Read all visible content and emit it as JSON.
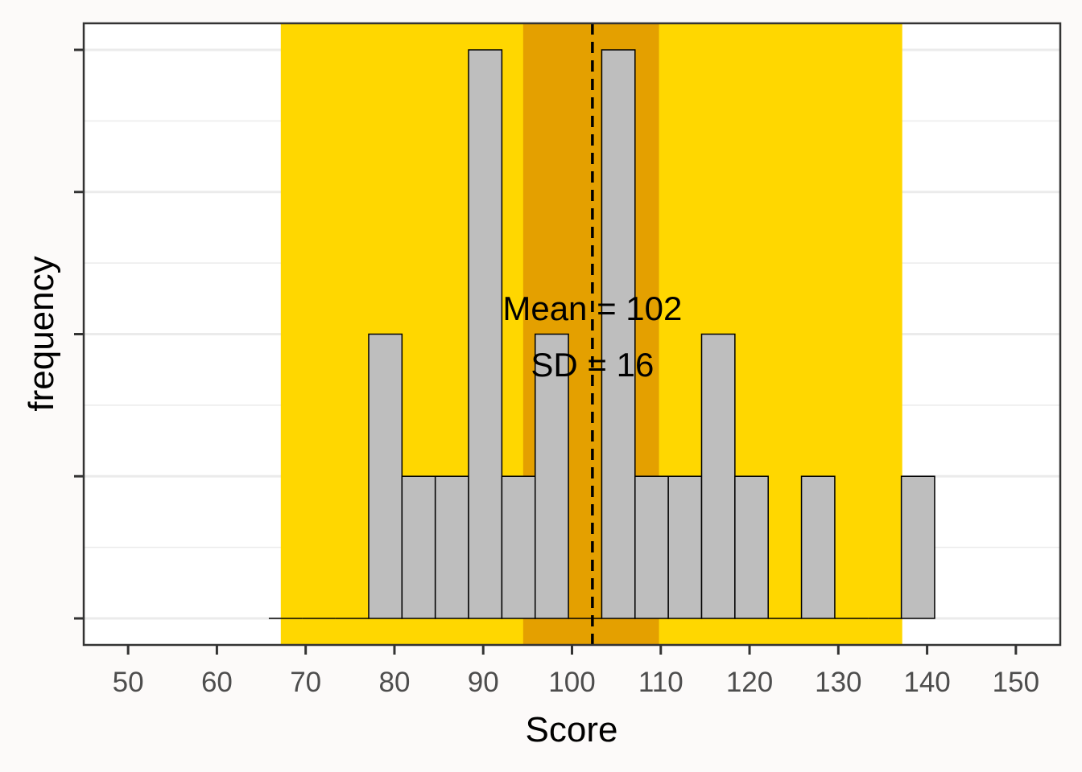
{
  "chart_data": {
    "type": "bar",
    "subtype": "histogram",
    "xlabel": "Score",
    "ylabel": "frequency",
    "xlim": [
      45,
      155
    ],
    "ylim": [
      0,
      4
    ],
    "y_tick_labels_shown": false,
    "x_ticks": [
      50,
      60,
      70,
      80,
      90,
      100,
      110,
      120,
      130,
      140,
      150
    ],
    "x_tick_labels": [
      "50",
      "60",
      "70",
      "80",
      "90",
      "100",
      "110",
      "120",
      "130",
      "140",
      "150"
    ],
    "y_ticks": [
      0,
      1,
      2,
      3,
      4
    ],
    "bins": [
      {
        "x0": 65.85,
        "x1": 69.6,
        "count": 0
      },
      {
        "x0": 69.6,
        "x1": 73.35,
        "count": 0
      },
      {
        "x0": 73.35,
        "x1": 77.1,
        "count": 0
      },
      {
        "x0": 77.1,
        "x1": 80.85,
        "count": 2
      },
      {
        "x0": 80.85,
        "x1": 84.6,
        "count": 1
      },
      {
        "x0": 84.6,
        "x1": 88.35,
        "count": 1
      },
      {
        "x0": 88.35,
        "x1": 92.1,
        "count": 4
      },
      {
        "x0": 92.1,
        "x1": 95.85,
        "count": 1
      },
      {
        "x0": 95.85,
        "x1": 99.6,
        "count": 2
      },
      {
        "x0": 99.6,
        "x1": 103.35,
        "count": 0
      },
      {
        "x0": 103.35,
        "x1": 107.1,
        "count": 4
      },
      {
        "x0": 107.1,
        "x1": 110.85,
        "count": 1
      },
      {
        "x0": 110.85,
        "x1": 114.6,
        "count": 1
      },
      {
        "x0": 114.6,
        "x1": 118.35,
        "count": 2
      },
      {
        "x0": 118.35,
        "x1": 122.1,
        "count": 1
      },
      {
        "x0": 122.1,
        "x1": 125.85,
        "count": 0
      },
      {
        "x0": 125.85,
        "x1": 129.6,
        "count": 1
      },
      {
        "x0": 129.6,
        "x1": 133.35,
        "count": 0
      },
      {
        "x0": 133.35,
        "x1": 137.1,
        "count": 0
      },
      {
        "x0": 137.1,
        "x1": 140.85,
        "count": 1
      }
    ],
    "bar_fill": "#bebebe",
    "bar_stroke": "#000000",
    "mean": 102.3,
    "mean_line_style": "dashed",
    "bands": [
      {
        "x0": 67.2,
        "x1": 137.2,
        "color": "#ffd700"
      },
      {
        "x0": 94.5,
        "x1": 109.8,
        "color": "#e4a000"
      }
    ],
    "annotation_lines": [
      "Mean = 102",
      "SD = 16"
    ],
    "grid": true,
    "panel_background": "#ffffff",
    "plot_background": "#fcfaf9"
  }
}
